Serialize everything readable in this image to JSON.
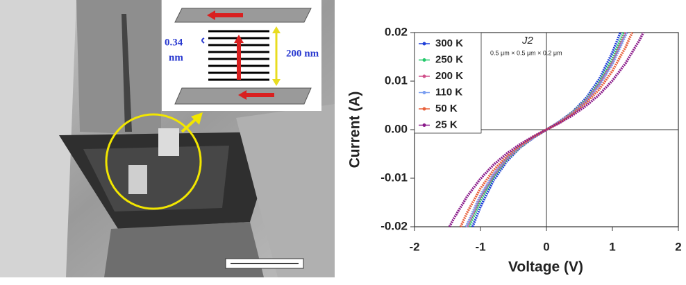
{
  "image_labels": {
    "spacing": [
      "0.34",
      "nm"
    ],
    "thickness": "200 nm"
  },
  "chart_data": {
    "type": "line",
    "annotation": "J2",
    "subtitle": "0.5 μm × 0.5 μm × 0.2 μm",
    "xlabel": "Voltage (V)",
    "ylabel": "Current (A)",
    "xlim": [
      -2,
      2
    ],
    "xticks": [
      -2,
      -1,
      0,
      1,
      2
    ],
    "ylim": [
      -0.02,
      0.02
    ],
    "yticks": [
      -0.02,
      -0.01,
      {
        "value": 0,
        "label": "0.00"
      },
      0.01,
      0.02
    ],
    "legend": "upper-left",
    "series": [
      {
        "name": "300 K",
        "color": "#1f3fd8",
        "x": [
          -1.12,
          -1.0,
          -0.8,
          -0.6,
          -0.4,
          -0.2,
          0,
          0.2,
          0.4,
          0.6,
          0.8,
          1.0,
          1.12
        ],
        "values": [
          -0.02,
          -0.0159,
          -0.0104,
          -0.0065,
          -0.0037,
          -0.0017,
          0,
          0.0017,
          0.0037,
          0.0065,
          0.0104,
          0.0159,
          0.02
        ]
      },
      {
        "name": "250 K",
        "color": "#22c86a",
        "x": [
          -1.17,
          -1.0,
          -0.8,
          -0.6,
          -0.4,
          -0.2,
          0,
          0.2,
          0.4,
          0.6,
          0.8,
          1.0,
          1.17
        ],
        "values": [
          -0.02,
          -0.0146,
          -0.0097,
          -0.0061,
          -0.0036,
          -0.0016,
          0,
          0.0016,
          0.0036,
          0.0061,
          0.0097,
          0.0146,
          0.02
        ]
      },
      {
        "name": "200 K",
        "color": "#d0508a",
        "x": [
          -1.2,
          -1.0,
          -0.8,
          -0.6,
          -0.4,
          -0.2,
          0,
          0.2,
          0.4,
          0.6,
          0.8,
          1.0,
          1.2
        ],
        "values": [
          -0.02,
          -0.0139,
          -0.0094,
          -0.006,
          -0.0035,
          -0.0016,
          0,
          0.0016,
          0.0035,
          0.006,
          0.0094,
          0.0139,
          0.02
        ]
      },
      {
        "name": "110 K",
        "color": "#7a9ef0",
        "x": [
          -1.22,
          -1.0,
          -0.8,
          -0.6,
          -0.4,
          -0.2,
          0,
          0.2,
          0.4,
          0.6,
          0.8,
          1.0,
          1.22
        ],
        "values": [
          -0.02,
          -0.0135,
          -0.0091,
          -0.0058,
          -0.0034,
          -0.0016,
          0,
          0.0016,
          0.0034,
          0.0058,
          0.0091,
          0.0135,
          0.02
        ]
      },
      {
        "name": "50 K",
        "color": "#e8603a",
        "x": [
          -1.3,
          -1.2,
          -1.0,
          -0.8,
          -0.6,
          -0.4,
          -0.2,
          0,
          0.2,
          0.4,
          0.6,
          0.8,
          1.0,
          1.2,
          1.3
        ],
        "values": [
          -0.02,
          -0.017,
          -0.0121,
          -0.0083,
          -0.0055,
          -0.0033,
          -0.0015,
          0,
          0.0015,
          0.0033,
          0.0055,
          0.0083,
          0.0121,
          0.017,
          0.02
        ]
      },
      {
        "name": "25 K",
        "color": "#8a1a8a",
        "x": [
          -1.47,
          -1.4,
          -1.2,
          -1.0,
          -0.8,
          -0.6,
          -0.4,
          -0.2,
          0,
          0.2,
          0.4,
          0.6,
          0.8,
          1.0,
          1.2,
          1.4,
          1.47
        ],
        "values": [
          -0.02,
          -0.0182,
          -0.0137,
          -0.0101,
          -0.0072,
          -0.0049,
          -0.003,
          -0.0014,
          0,
          0.0014,
          0.003,
          0.0049,
          0.0072,
          0.0101,
          0.0137,
          0.0182,
          0.02
        ]
      }
    ]
  }
}
